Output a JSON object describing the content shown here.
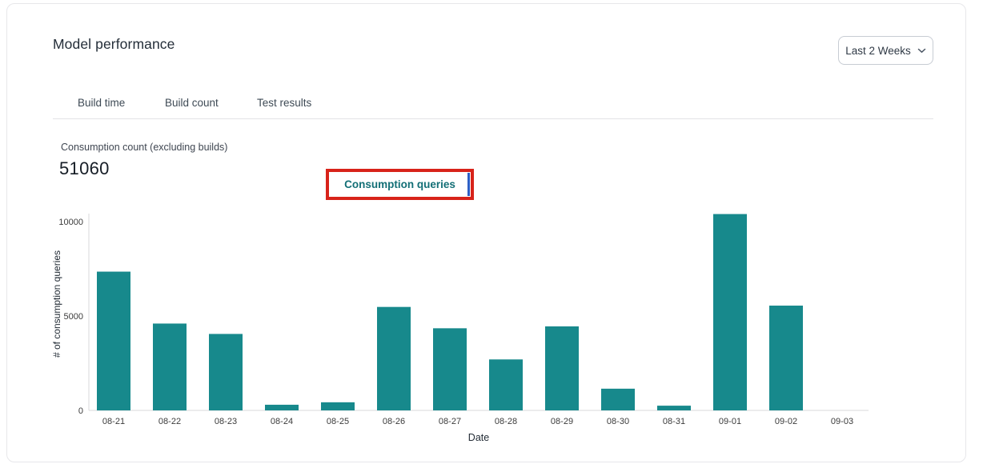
{
  "header": {
    "title": "Model performance"
  },
  "time_range_dropdown": {
    "label": "Last 2 Weeks"
  },
  "tabs": [
    {
      "label": "Build time",
      "active": false
    },
    {
      "label": "Build count",
      "active": false
    },
    {
      "label": "Test results",
      "active": false
    },
    {
      "label": "Consumption queries",
      "active": true
    }
  ],
  "annotation": {
    "box_color": "#d8231a",
    "sliver_color": "#2e5ec4"
  },
  "metric": {
    "label": "Consumption count (excluding builds)",
    "value": "51060"
  },
  "chart_data": {
    "type": "bar",
    "title": "",
    "xlabel": "Date",
    "ylabel": "# of consumption queries",
    "categories": [
      "08-21",
      "08-22",
      "08-23",
      "08-24",
      "08-25",
      "08-26",
      "08-27",
      "08-28",
      "08-29",
      "08-30",
      "08-31",
      "09-01",
      "09-02",
      "09-03"
    ],
    "values": [
      7350,
      4600,
      4050,
      300,
      430,
      5480,
      4350,
      2700,
      4450,
      1150,
      250,
      10400,
      5550,
      0
    ],
    "yticks": [
      0,
      5000,
      10000
    ],
    "ylim": [
      0,
      10500
    ],
    "grid": false,
    "legend": "none",
    "bar_color": "#17898C",
    "axis_color": "#d8d8db",
    "tick_label_color": "#3b3b3b",
    "axis_title_color": "#232c36"
  }
}
